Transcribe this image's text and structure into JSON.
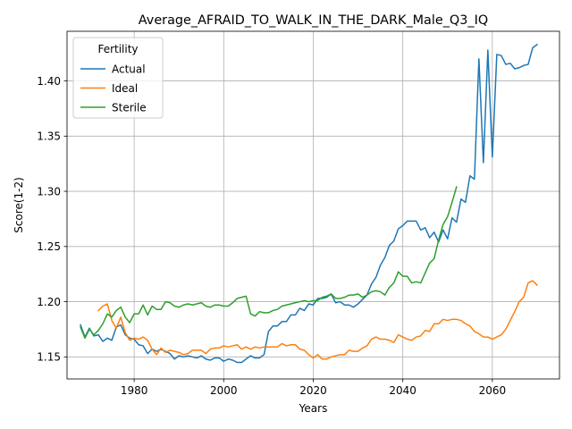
{
  "chart_data": {
    "type": "line",
    "title": "Average_AFRAID_TO_WALK_IN_THE_DARK_Male_Q3_IQ",
    "xlabel": "Years",
    "ylabel": "Score(1-2)",
    "xlim": [
      1965,
      2075
    ],
    "ylim": [
      1.13,
      1.445
    ],
    "xticks": [
      1980,
      2000,
      2020,
      2040,
      2060
    ],
    "xtick_labels": [
      "1980",
      "2000",
      "2020",
      "2040",
      "2060"
    ],
    "yticks": [
      1.15,
      1.2,
      1.25,
      1.3,
      1.35,
      1.4
    ],
    "ytick_labels": [
      "1.15",
      "1.20",
      "1.25",
      "1.30",
      "1.35",
      "1.40"
    ],
    "grid": true,
    "legend": {
      "title": "Fertility",
      "location": "upper-left"
    },
    "series": [
      {
        "name": "Actual",
        "color": "#1f77b4",
        "x": [
          1968,
          1969,
          1970,
          1971,
          1972,
          1973,
          1974,
          1975,
          1976,
          1977,
          1978,
          1979,
          1980,
          1981,
          1982,
          1983,
          1984,
          1985,
          1986,
          1987,
          1988,
          1989,
          1990,
          1991,
          1992,
          1993,
          1994,
          1995,
          1996,
          1997,
          1998,
          1999,
          2000,
          2001,
          2002,
          2003,
          2004,
          2005,
          2006,
          2007,
          2008,
          2009,
          2010,
          2011,
          2012,
          2013,
          2014,
          2015,
          2016,
          2017,
          2018,
          2019,
          2020,
          2021,
          2022,
          2023,
          2024,
          2025,
          2026,
          2027,
          2028,
          2029,
          2030,
          2031,
          2032,
          2033,
          2034,
          2035,
          2036,
          2037,
          2038,
          2039,
          2040,
          2041,
          2042,
          2043,
          2044,
          2045,
          2046,
          2047,
          2048,
          2049,
          2050,
          2051,
          2052,
          2053,
          2054,
          2055,
          2056,
          2057,
          2058,
          2059,
          2060,
          2061,
          2062,
          2063,
          2064,
          2065,
          2066,
          2067,
          2068,
          2069,
          2070
        ],
        "values": [
          1.179,
          1.168,
          1.176,
          1.169,
          1.17,
          1.164,
          1.167,
          1.165,
          1.177,
          1.179,
          1.17,
          1.167,
          1.166,
          1.161,
          1.16,
          1.153,
          1.157,
          1.155,
          1.157,
          1.155,
          1.153,
          1.148,
          1.151,
          1.15,
          1.151,
          1.15,
          1.149,
          1.151,
          1.148,
          1.147,
          1.149,
          1.149,
          1.146,
          1.148,
          1.147,
          1.145,
          1.145,
          1.148,
          1.151,
          1.149,
          1.149,
          1.152,
          1.173,
          1.178,
          1.178,
          1.182,
          1.182,
          1.188,
          1.188,
          1.194,
          1.192,
          1.198,
          1.197,
          1.203,
          1.203,
          1.204,
          1.207,
          1.199,
          1.2,
          1.197,
          1.197,
          1.195,
          1.198,
          1.202,
          1.206,
          1.216,
          1.222,
          1.233,
          1.24,
          1.251,
          1.255,
          1.266,
          1.269,
          1.273,
          1.273,
          1.273,
          1.265,
          1.267,
          1.258,
          1.263,
          1.254,
          1.265,
          1.257,
          1.276,
          1.272,
          1.293,
          1.29,
          1.314,
          1.311,
          1.42,
          1.326,
          1.428,
          1.331,
          1.424,
          1.423,
          1.415,
          1.416,
          1.411,
          1.412,
          1.414,
          1.415,
          1.43,
          1.433
        ]
      },
      {
        "name": "Ideal",
        "color": "#ff7f0e",
        "x": [
          1972,
          1973,
          1974,
          1975,
          1976,
          1977,
          1978,
          1979,
          1980,
          1981,
          1982,
          1983,
          1984,
          1985,
          1986,
          1987,
          1988,
          1989,
          1990,
          1991,
          1992,
          1993,
          1994,
          1995,
          1996,
          1997,
          1998,
          1999,
          2000,
          2001,
          2002,
          2003,
          2004,
          2005,
          2006,
          2007,
          2008,
          2009,
          2010,
          2011,
          2012,
          2013,
          2014,
          2015,
          2016,
          2017,
          2018,
          2019,
          2020,
          2021,
          2022,
          2023,
          2024,
          2025,
          2026,
          2027,
          2028,
          2029,
          2030,
          2031,
          2032,
          2033,
          2034,
          2035,
          2036,
          2037,
          2038,
          2039,
          2040,
          2041,
          2042,
          2043,
          2044,
          2045,
          2046,
          2047,
          2048,
          2049,
          2050,
          2051,
          2052,
          2053,
          2054,
          2055,
          2056,
          2057,
          2058,
          2059,
          2060,
          2061,
          2062,
          2063,
          2064,
          2065,
          2066,
          2067,
          2068,
          2069,
          2070
        ],
        "values": [
          1.192,
          1.196,
          1.198,
          1.183,
          1.176,
          1.186,
          1.172,
          1.165,
          1.167,
          1.166,
          1.168,
          1.165,
          1.157,
          1.152,
          1.158,
          1.154,
          1.156,
          1.155,
          1.154,
          1.152,
          1.153,
          1.156,
          1.156,
          1.156,
          1.153,
          1.157,
          1.158,
          1.158,
          1.16,
          1.159,
          1.16,
          1.161,
          1.157,
          1.159,
          1.157,
          1.159,
          1.158,
          1.159,
          1.159,
          1.159,
          1.159,
          1.162,
          1.16,
          1.161,
          1.161,
          1.157,
          1.156,
          1.152,
          1.149,
          1.152,
          1.148,
          1.148,
          1.15,
          1.151,
          1.152,
          1.152,
          1.156,
          1.155,
          1.155,
          1.158,
          1.16,
          1.166,
          1.168,
          1.166,
          1.166,
          1.165,
          1.163,
          1.17,
          1.168,
          1.166,
          1.165,
          1.168,
          1.169,
          1.174,
          1.173,
          1.18,
          1.18,
          1.184,
          1.183,
          1.184,
          1.184,
          1.183,
          1.18,
          1.178,
          1.173,
          1.171,
          1.168,
          1.168,
          1.166,
          1.168,
          1.17,
          1.175,
          1.183,
          1.191,
          1.2,
          1.204,
          1.217,
          1.219,
          1.215
        ]
      },
      {
        "name": "Sterile",
        "color": "#2ca02c",
        "x": [
          1968,
          1969,
          1970,
          1971,
          1972,
          1973,
          1974,
          1975,
          1976,
          1977,
          1978,
          1979,
          1980,
          1981,
          1982,
          1983,
          1984,
          1985,
          1986,
          1987,
          1988,
          1989,
          1990,
          1991,
          1992,
          1993,
          1994,
          1995,
          1996,
          1997,
          1998,
          1999,
          2000,
          2001,
          2002,
          2003,
          2004,
          2005,
          2006,
          2007,
          2008,
          2009,
          2010,
          2011,
          2012,
          2013,
          2014,
          2015,
          2016,
          2017,
          2018,
          2019,
          2020,
          2021,
          2022,
          2023,
          2024,
          2025,
          2026,
          2027,
          2028,
          2029,
          2030,
          2031,
          2032,
          2033,
          2034,
          2035,
          2036,
          2037,
          2038,
          2039,
          2040,
          2041,
          2042,
          2043,
          2044,
          2045,
          2046,
          2047,
          2048,
          2049,
          2050,
          2051,
          2052
        ],
        "values": [
          1.177,
          1.167,
          1.175,
          1.17,
          1.174,
          1.18,
          1.189,
          1.186,
          1.192,
          1.195,
          1.186,
          1.181,
          1.189,
          1.189,
          1.197,
          1.188,
          1.196,
          1.193,
          1.193,
          1.2,
          1.199,
          1.196,
          1.195,
          1.197,
          1.198,
          1.197,
          1.198,
          1.199,
          1.196,
          1.195,
          1.197,
          1.197,
          1.196,
          1.196,
          1.199,
          1.203,
          1.204,
          1.205,
          1.189,
          1.187,
          1.191,
          1.19,
          1.19,
          1.192,
          1.193,
          1.196,
          1.197,
          1.198,
          1.199,
          1.2,
          1.201,
          1.2,
          1.201,
          1.201,
          1.204,
          1.205,
          1.207,
          1.203,
          1.203,
          1.204,
          1.206,
          1.206,
          1.207,
          1.204,
          1.206,
          1.209,
          1.21,
          1.209,
          1.206,
          1.213,
          1.217,
          1.227,
          1.223,
          1.223,
          1.217,
          1.218,
          1.217,
          1.226,
          1.235,
          1.239,
          1.256,
          1.27,
          1.277,
          1.29,
          1.304
        ]
      }
    ]
  }
}
